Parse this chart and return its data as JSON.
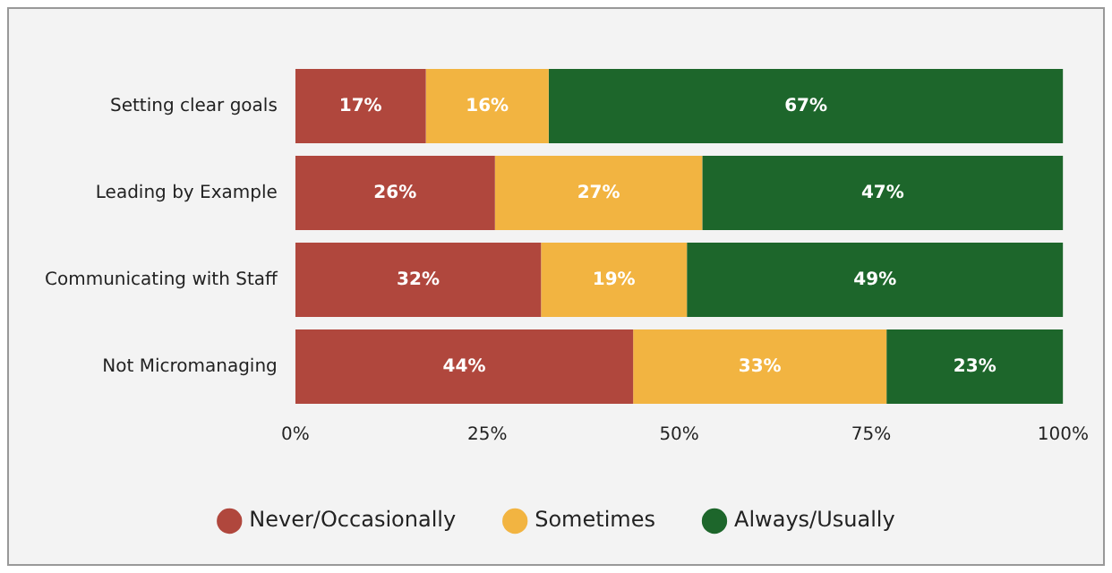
{
  "chart_data": {
    "type": "bar",
    "orientation": "horizontal",
    "stacked": true,
    "categories": [
      "Setting clear goals",
      "Leading by Example",
      "Communicating with Staff",
      "Not Micromanaging"
    ],
    "series": [
      {
        "name": "Never/Occasionally",
        "color": "#b0473d",
        "values": [
          17,
          26,
          32,
          44
        ],
        "value_labels": [
          "17%",
          "26%",
          "32%",
          "44%"
        ]
      },
      {
        "name": "Sometimes",
        "color": "#f2b441",
        "values": [
          16,
          27,
          19,
          33
        ],
        "value_labels": [
          "16%",
          "27%",
          "19%",
          "33%"
        ]
      },
      {
        "name": "Always/Usually",
        "color": "#1d662b",
        "values": [
          67,
          47,
          49,
          23
        ],
        "value_labels": [
          "67%",
          "47%",
          "49%",
          "23%"
        ]
      }
    ],
    "xlim": [
      0,
      100
    ],
    "xticks": [
      {
        "value": 0,
        "label": "0%"
      },
      {
        "value": 25,
        "label": "25%"
      },
      {
        "value": 50,
        "label": "50%"
      },
      {
        "value": 75,
        "label": "75%"
      },
      {
        "value": 100,
        "label": "100%"
      }
    ],
    "grid": false,
    "legend": "bottom",
    "marker": "circle"
  }
}
